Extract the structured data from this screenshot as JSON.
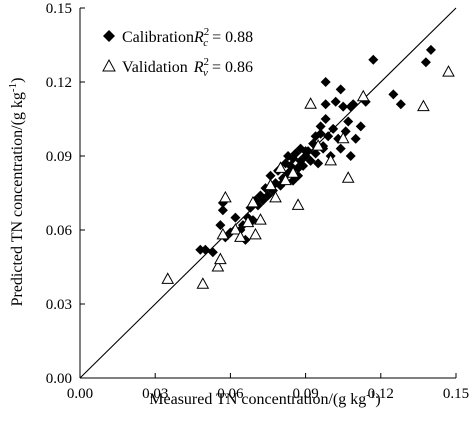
{
  "chart_data": {
    "type": "scatter",
    "xlabel": "Measured TN concentration/(g kg",
    "xlabel_sup": "-1",
    "xlabel_close": ")",
    "ylabel": "Predicted TN concentration/(g kg",
    "ylabel_sup": "-1",
    "ylabel_close": ")",
    "xlim": [
      0,
      0.15
    ],
    "ylim": [
      0,
      0.15
    ],
    "x_ticks": [
      0,
      0.03,
      0.06,
      0.09,
      0.12,
      0.15
    ],
    "x_tick_labels": [
      "0.00",
      "0.03",
      "0.06",
      "0.09",
      "0.12",
      "0.15"
    ],
    "y_ticks": [
      0,
      0.03,
      0.06,
      0.09,
      0.12,
      0.15
    ],
    "y_tick_labels": [
      "0.00",
      "0.03",
      "0.06",
      "0.09",
      "0.12",
      "0.15"
    ],
    "grid": false,
    "legend_position": "top-left",
    "reference_line": {
      "from": [
        0,
        0
      ],
      "to": [
        0.15,
        0.15
      ],
      "color": "#000000"
    },
    "series": [
      {
        "name": "Calibration",
        "marker": "filled-diamond",
        "color": "#000000",
        "stat_label_pre": "R",
        "stat_sup": "2",
        "stat_sub": "c",
        "stat_value": " = 0.88",
        "points": [
          [
            0.048,
            0.052
          ],
          [
            0.05,
            0.052
          ],
          [
            0.053,
            0.051
          ],
          [
            0.056,
            0.062
          ],
          [
            0.057,
            0.068
          ],
          [
            0.057,
            0.071
          ],
          [
            0.058,
            0.057
          ],
          [
            0.06,
            0.059
          ],
          [
            0.062,
            0.065
          ],
          [
            0.064,
            0.06
          ],
          [
            0.065,
            0.062
          ],
          [
            0.066,
            0.056
          ],
          [
            0.067,
            0.065
          ],
          [
            0.068,
            0.069
          ],
          [
            0.069,
            0.064
          ],
          [
            0.07,
            0.072
          ],
          [
            0.071,
            0.07
          ],
          [
            0.072,
            0.074
          ],
          [
            0.073,
            0.072
          ],
          [
            0.074,
            0.077
          ],
          [
            0.075,
            0.074
          ],
          [
            0.076,
            0.082
          ],
          [
            0.077,
            0.076
          ],
          [
            0.078,
            0.079
          ],
          [
            0.079,
            0.084
          ],
          [
            0.08,
            0.078
          ],
          [
            0.081,
            0.081
          ],
          [
            0.082,
            0.087
          ],
          [
            0.083,
            0.083
          ],
          [
            0.084,
            0.086
          ],
          [
            0.085,
            0.08
          ],
          [
            0.085,
            0.089
          ],
          [
            0.086,
            0.091
          ],
          [
            0.087,
            0.085
          ],
          [
            0.088,
            0.088
          ],
          [
            0.088,
            0.093
          ],
          [
            0.089,
            0.086
          ],
          [
            0.09,
            0.09
          ],
          [
            0.091,
            0.092
          ],
          [
            0.092,
            0.088
          ],
          [
            0.093,
            0.095
          ],
          [
            0.094,
            0.091
          ],
          [
            0.095,
            0.087
          ],
          [
            0.096,
            0.102
          ],
          [
            0.097,
            0.094
          ],
          [
            0.098,
            0.105
          ],
          [
            0.098,
            0.111
          ],
          [
            0.099,
            0.098
          ],
          [
            0.1,
            0.09
          ],
          [
            0.101,
            0.101
          ],
          [
            0.102,
            0.112
          ],
          [
            0.103,
            0.097
          ],
          [
            0.104,
            0.093
          ],
          [
            0.105,
            0.11
          ],
          [
            0.106,
            0.1
          ],
          [
            0.107,
            0.104
          ],
          [
            0.108,
            0.11
          ],
          [
            0.108,
            0.09
          ],
          [
            0.109,
            0.111
          ],
          [
            0.11,
            0.097
          ],
          [
            0.112,
            0.102
          ],
          [
            0.114,
            0.112
          ],
          [
            0.098,
            0.12
          ],
          [
            0.104,
            0.117
          ],
          [
            0.117,
            0.129
          ],
          [
            0.125,
            0.115
          ],
          [
            0.128,
            0.111
          ],
          [
            0.138,
            0.128
          ],
          [
            0.14,
            0.133
          ],
          [
            0.094,
            0.098
          ],
          [
            0.09,
            0.092
          ],
          [
            0.087,
            0.082
          ],
          [
            0.083,
            0.09
          ],
          [
            0.097,
            0.093
          ],
          [
            0.096,
            0.099
          ]
        ]
      },
      {
        "name": "Validation",
        "marker": "open-triangle",
        "color": "#000000",
        "stat_label_pre": "R",
        "stat_sup": "2",
        "stat_sub": "v",
        "stat_value": " = 0.86",
        "points": [
          [
            0.035,
            0.04
          ],
          [
            0.049,
            0.038
          ],
          [
            0.055,
            0.045
          ],
          [
            0.056,
            0.048
          ],
          [
            0.057,
            0.058
          ],
          [
            0.058,
            0.073
          ],
          [
            0.062,
            0.06
          ],
          [
            0.064,
            0.057
          ],
          [
            0.067,
            0.063
          ],
          [
            0.069,
            0.071
          ],
          [
            0.07,
            0.058
          ],
          [
            0.072,
            0.064
          ],
          [
            0.076,
            0.078
          ],
          [
            0.078,
            0.073
          ],
          [
            0.08,
            0.085
          ],
          [
            0.082,
            0.08
          ],
          [
            0.085,
            0.083
          ],
          [
            0.087,
            0.07
          ],
          [
            0.092,
            0.111
          ],
          [
            0.095,
            0.094
          ],
          [
            0.1,
            0.088
          ],
          [
            0.105,
            0.097
          ],
          [
            0.107,
            0.081
          ],
          [
            0.113,
            0.114
          ],
          [
            0.137,
            0.11
          ],
          [
            0.147,
            0.124
          ]
        ]
      }
    ]
  }
}
